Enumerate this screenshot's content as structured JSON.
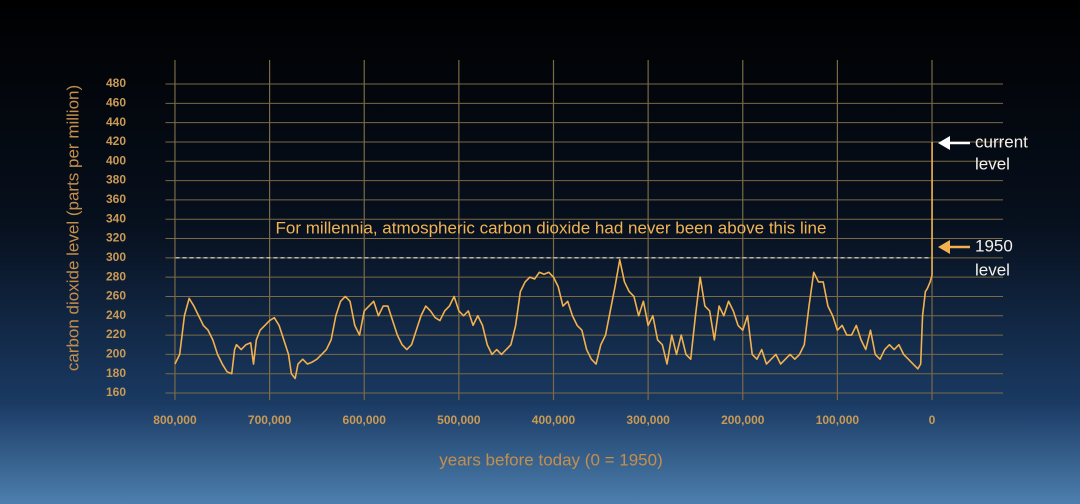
{
  "chart_data": {
    "type": "line",
    "ylabel": "carbon dioxide level (parts per million)",
    "xlabel": "years before today (0 = 1950)",
    "annotation": "For millennia, atmospheric carbon dioxide had never been above this line",
    "reference_line": 300,
    "current_label": [
      "current",
      "level"
    ],
    "level_1950_label": [
      "1950",
      "level"
    ],
    "xlim": [
      810000,
      -75000
    ],
    "ylim": [
      160,
      480
    ],
    "xticks": [
      {
        "value": 800000,
        "label": "800,000"
      },
      {
        "value": 700000,
        "label": "700,000"
      },
      {
        "value": 600000,
        "label": "600,000"
      },
      {
        "value": 500000,
        "label": "500,000"
      },
      {
        "value": 400000,
        "label": "400,000"
      },
      {
        "value": 300000,
        "label": "300,000"
      },
      {
        "value": 200000,
        "label": "200,000"
      },
      {
        "value": 100000,
        "label": "100,000"
      },
      0
    ],
    "yticks": [
      160,
      180,
      200,
      220,
      240,
      260,
      280,
      300,
      320,
      340,
      360,
      380,
      400,
      420,
      440,
      460,
      480
    ],
    "grid": true,
    "color": "#f2b14e",
    "x": [
      800000,
      795000,
      790000,
      785000,
      780000,
      775000,
      770000,
      765000,
      760000,
      755000,
      750000,
      745000,
      740000,
      737000,
      735000,
      730000,
      725000,
      720000,
      717000,
      714000,
      710000,
      705000,
      700000,
      695000,
      690000,
      685000,
      680000,
      677000,
      673000,
      670000,
      665000,
      660000,
      655000,
      650000,
      645000,
      640000,
      635000,
      630000,
      625000,
      620000,
      615000,
      610000,
      605000,
      600000,
      595000,
      590000,
      585000,
      580000,
      575000,
      570000,
      565000,
      560000,
      555000,
      550000,
      545000,
      540000,
      535000,
      530000,
      525000,
      520000,
      515000,
      510000,
      505000,
      500000,
      495000,
      490000,
      485000,
      480000,
      475000,
      470000,
      465000,
      460000,
      455000,
      450000,
      445000,
      440000,
      435000,
      430000,
      425000,
      420000,
      415000,
      410000,
      405000,
      400000,
      395000,
      390000,
      385000,
      380000,
      375000,
      370000,
      365000,
      360000,
      355000,
      350000,
      345000,
      340000,
      335000,
      330000,
      325000,
      320000,
      315000,
      310000,
      305000,
      300000,
      295000,
      290000,
      285000,
      280000,
      275000,
      270000,
      265000,
      260000,
      255000,
      250000,
      245000,
      240000,
      235000,
      230000,
      225000,
      220000,
      215000,
      210000,
      205000,
      200000,
      195000,
      190000,
      185000,
      180000,
      175000,
      170000,
      165000,
      160000,
      155000,
      150000,
      145000,
      140000,
      135000,
      130000,
      125000,
      120000,
      115000,
      110000,
      105000,
      100000,
      95000,
      90000,
      85000,
      80000,
      75000,
      70000,
      65000,
      60000,
      55000,
      50000,
      45000,
      40000,
      35000,
      30000,
      25000,
      20000,
      15000,
      12000,
      10000,
      7000,
      5000,
      2000,
      0,
      -70
    ],
    "values": [
      190,
      200,
      240,
      258,
      250,
      240,
      230,
      225,
      215,
      200,
      190,
      182,
      180,
      205,
      210,
      205,
      210,
      212,
      190,
      215,
      225,
      230,
      235,
      238,
      230,
      215,
      200,
      180,
      175,
      190,
      195,
      190,
      192,
      195,
      200,
      205,
      215,
      240,
      255,
      260,
      255,
      230,
      220,
      245,
      250,
      255,
      240,
      250,
      250,
      235,
      220,
      210,
      205,
      210,
      225,
      240,
      250,
      245,
      238,
      235,
      245,
      250,
      260,
      245,
      240,
      245,
      230,
      240,
      230,
      210,
      200,
      205,
      200,
      205,
      210,
      230,
      265,
      275,
      280,
      278,
      285,
      283,
      285,
      280,
      270,
      250,
      255,
      240,
      230,
      225,
      205,
      195,
      190,
      210,
      220,
      245,
      270,
      298,
      275,
      265,
      260,
      240,
      255,
      230,
      240,
      215,
      210,
      190,
      220,
      200,
      220,
      200,
      195,
      240,
      280,
      250,
      245,
      215,
      250,
      240,
      255,
      245,
      230,
      225,
      240,
      200,
      195,
      205,
      190,
      195,
      200,
      190,
      195,
      200,
      195,
      200,
      210,
      250,
      285,
      275,
      275,
      250,
      240,
      225,
      230,
      220,
      220,
      230,
      215,
      205,
      225,
      200,
      195,
      205,
      210,
      205,
      210,
      200,
      195,
      190,
      185,
      190,
      240,
      265,
      268,
      275,
      282,
      420
    ]
  }
}
